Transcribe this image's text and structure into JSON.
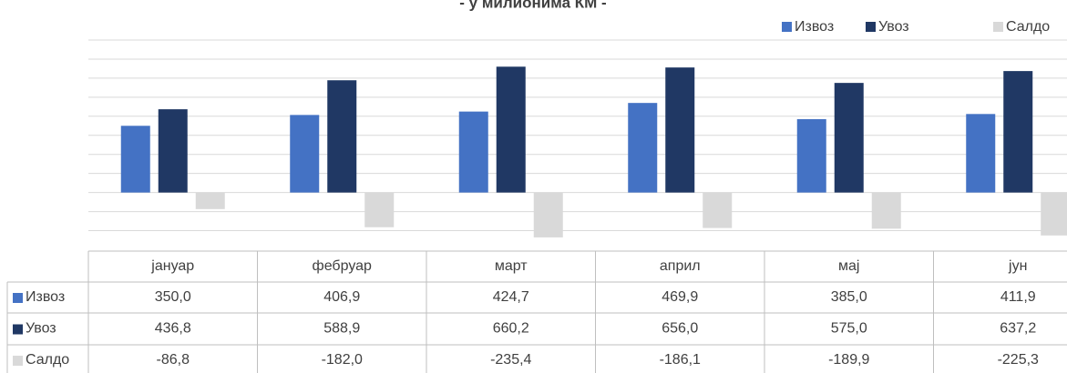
{
  "chart_data": {
    "type": "bar",
    "title": "- у милионима КМ -",
    "categories": [
      "јануар",
      "фебруар",
      "март",
      "април",
      "мај",
      "јун"
    ],
    "series": [
      {
        "name": "Извоз",
        "color": "#4472c4",
        "values": [
          350.0,
          406.9,
          424.7,
          469.9,
          385.0,
          411.9
        ],
        "value_labels": [
          "350,0",
          "406,9",
          "424,7",
          "469,9",
          "385,0",
          "411,9"
        ]
      },
      {
        "name": "Увоз",
        "color": "#203864",
        "values": [
          436.8,
          588.9,
          660.2,
          656.0,
          575.0,
          637.2
        ],
        "value_labels": [
          "436,8",
          "588,9",
          "660,2",
          "656,0",
          "575,0",
          "637,2"
        ]
      },
      {
        "name": "Салдо",
        "color": "#d9d9d9",
        "values": [
          -86.8,
          -182.0,
          -235.4,
          -186.1,
          -189.9,
          -225.3
        ],
        "value_labels": [
          "-86,8",
          "-182,0",
          "-235,4",
          "-186,1",
          "-189,9",
          "-225,3"
        ]
      }
    ],
    "ylim": [
      -250,
      800
    ],
    "yticks": [
      -200,
      -100,
      0,
      100,
      200,
      300,
      400,
      500,
      600,
      700,
      800
    ],
    "grid": true,
    "legend": "top-right"
  }
}
